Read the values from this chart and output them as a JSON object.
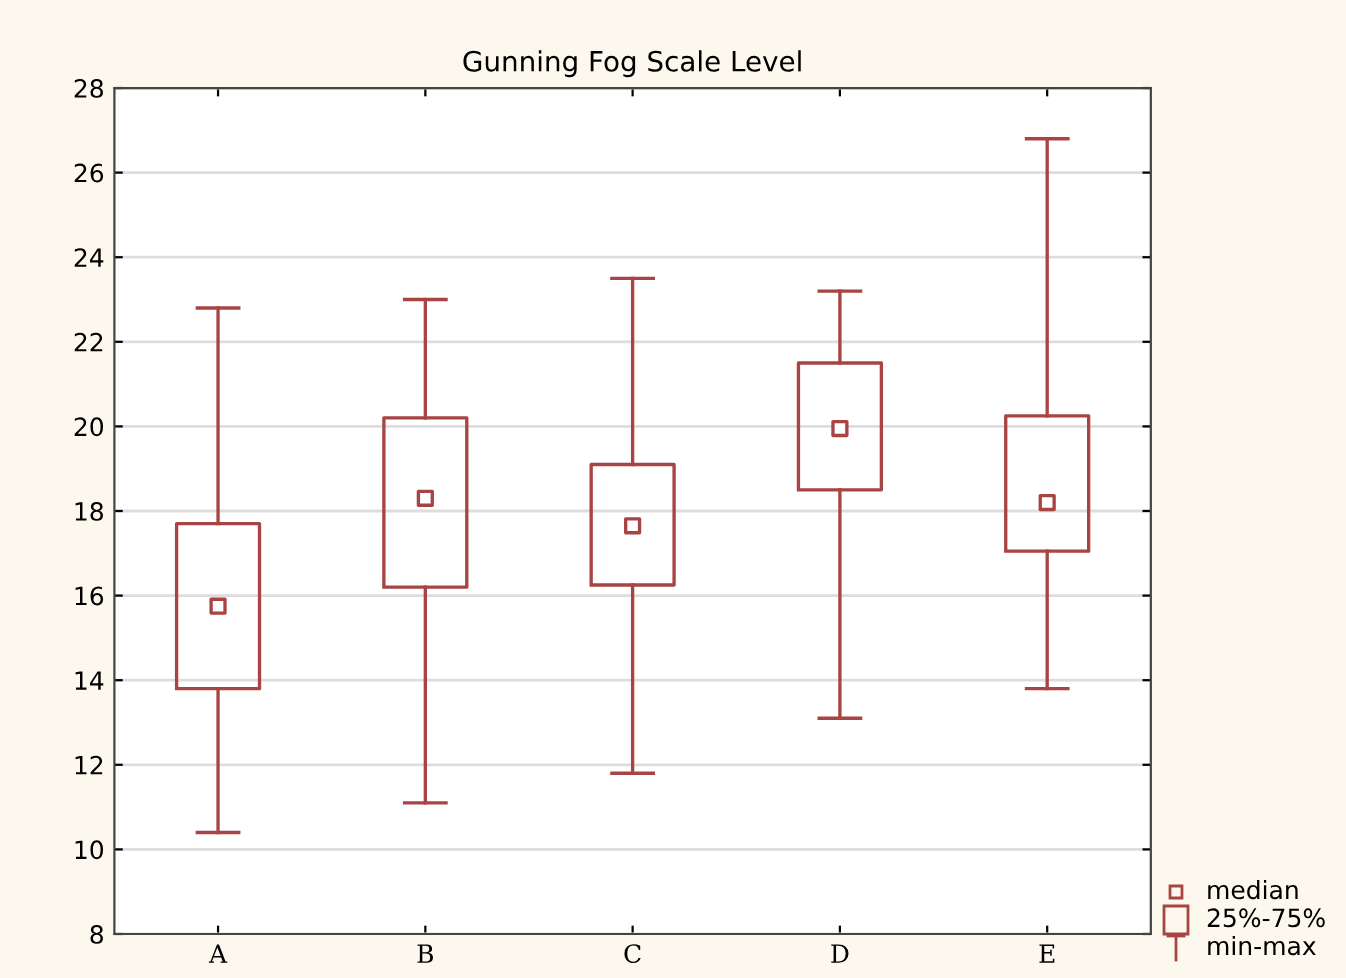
{
  "chart_data": {
    "type": "box",
    "title": "Gunning Fog Scale Level",
    "categories": [
      "A",
      "B",
      "C",
      "D",
      "E"
    ],
    "series": [
      {
        "color": "#a84444",
        "boxes": [
          {
            "low": 10.4,
            "q1": 13.8,
            "median": 15.75,
            "q3": 17.7,
            "high": 22.8
          },
          {
            "low": 11.1,
            "q1": 16.2,
            "median": 18.3,
            "q3": 20.2,
            "high": 23.0
          },
          {
            "low": 11.8,
            "q1": 16.25,
            "median": 17.65,
            "q3": 19.1,
            "high": 23.5
          },
          {
            "low": 13.1,
            "q1": 18.5,
            "median": 19.95,
            "q3": 21.5,
            "high": 23.2
          },
          {
            "low": 13.8,
            "q1": 17.05,
            "median": 18.2,
            "q3": 20.25,
            "high": 26.8
          }
        ]
      }
    ],
    "ylim": [
      8,
      28
    ],
    "yticks": [
      8,
      10,
      12,
      14,
      16,
      18,
      20,
      22,
      24,
      26,
      28
    ],
    "grid": "y",
    "marker": "square",
    "annotations": [
      "median",
      "25%-75%",
      "min-max"
    ]
  }
}
